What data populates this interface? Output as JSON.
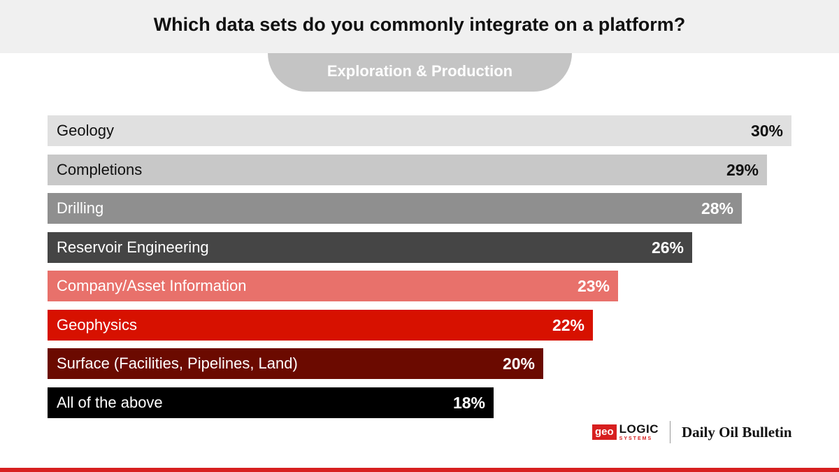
{
  "title": "Which data sets do you commonly integrate on a platform?",
  "subtitle": "Exploration & Production",
  "chart_data": {
    "type": "bar",
    "orientation": "horizontal",
    "title": "Which data sets do you commonly integrate on a platform?",
    "subtitle": "Exploration & Production",
    "categories": [
      "Geology",
      "Completions",
      "Drilling",
      "Reservoir Engineering",
      "Company/Asset Information",
      "Geophysics",
      "Surface (Facilities, Pipelines, Land)",
      "All of the above"
    ],
    "values": [
      30,
      29,
      28,
      26,
      23,
      22,
      20,
      18
    ],
    "value_labels": [
      "30%",
      "29%",
      "28%",
      "26%",
      "23%",
      "22%",
      "20%",
      "18%"
    ],
    "colors": [
      "#e0e0e0",
      "#c8c8c8",
      "#8f8f8f",
      "#454545",
      "#e8716b",
      "#d71100",
      "#6b0a00",
      "#000000"
    ],
    "text_colors": [
      "#111111",
      "#111111",
      "#ffffff",
      "#ffffff",
      "#ffffff",
      "#ffffff",
      "#ffffff",
      "#ffffff"
    ],
    "unit": "%",
    "grid": false,
    "legend": "none"
  },
  "logos": {
    "geo": "geo",
    "logic": "LOGIC",
    "systems": "SYSTEMS",
    "publication": "Daily Oil Bulletin"
  },
  "colors": {
    "header_bg": "#f0f0f0",
    "pill_bg": "#c4c4c4",
    "accent_red": "#d71f1f"
  }
}
